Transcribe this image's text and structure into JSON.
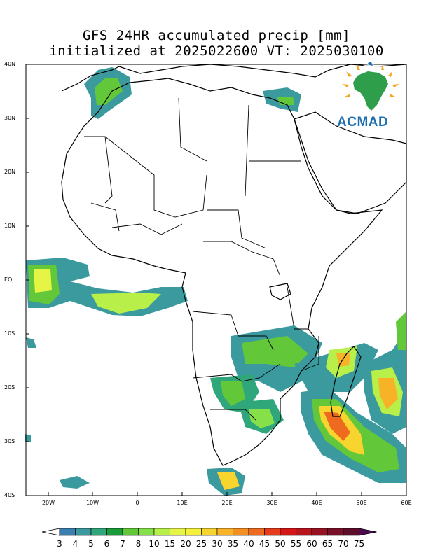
{
  "title": {
    "line1": "GFS 24HR accumulated precip [mm]",
    "line2": "initialized at 2025022600 VT: 2025030100"
  },
  "map": {
    "lat_labels": [
      "40N",
      "30N",
      "20N",
      "10N",
      "EQ",
      "10S",
      "20S",
      "30S",
      "40S"
    ],
    "lon_labels": [
      "20W",
      "10W",
      "0",
      "10E",
      "20E",
      "30E",
      "40E",
      "50E",
      "60E"
    ],
    "region": "Africa"
  },
  "logo": {
    "text": "ACMAD",
    "color": "#1e6fb0",
    "accent": "#f5a623",
    "africa_color": "#2e9e4a"
  },
  "colorbar": {
    "labels": [
      "3",
      "4",
      "5",
      "6",
      "7",
      "8",
      "10",
      "15",
      "20",
      "25",
      "30",
      "35",
      "40",
      "45",
      "50",
      "55",
      "60",
      "65",
      "70",
      "75"
    ],
    "colors": [
      "#ffffff",
      "#3b7fb0",
      "#3a9a9e",
      "#30a77b",
      "#1a9b3a",
      "#62c83a",
      "#86e04a",
      "#b8ef48",
      "#e6f545",
      "#f5f13a",
      "#f8d42e",
      "#f8b228",
      "#f49022",
      "#ee6a1e",
      "#e63b1a",
      "#d51616",
      "#b8141c",
      "#991224",
      "#7a1028",
      "#5c0e2a",
      "#4d0a4f"
    ]
  }
}
